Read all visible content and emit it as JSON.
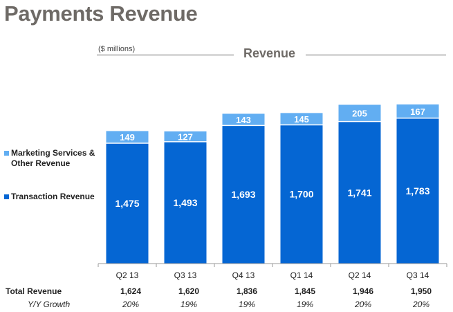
{
  "page": {
    "title": "Payments Revenue"
  },
  "chart_data": {
    "type": "bar",
    "stacked": true,
    "title": "Revenue",
    "units_note": "($ millions)",
    "categories": [
      "Q2 13",
      "Q3 13",
      "Q4 13",
      "Q1 14",
      "Q2 14",
      "Q3 14"
    ],
    "series": [
      {
        "name": "Transaction Revenue",
        "color": "#0566d3",
        "values": [
          1475,
          1493,
          1693,
          1700,
          1741,
          1783
        ],
        "labels": [
          "1,475",
          "1,493",
          "1,693",
          "1,700",
          "1,741",
          "1,783"
        ]
      },
      {
        "name": "Marketing Services & Other Revenue",
        "color": "#62aef2",
        "values": [
          149,
          127,
          143,
          145,
          205,
          167
        ],
        "labels": [
          "149",
          "127",
          "143",
          "145",
          "205",
          "167"
        ]
      }
    ],
    "ylim": [
      0,
      1950
    ],
    "grid": false,
    "legend_position": "left"
  },
  "legend": {
    "items": [
      {
        "label": "Marketing Services & Other Revenue",
        "color": "#62aef2"
      },
      {
        "label": "Transaction Revenue",
        "color": "#0566d3"
      }
    ]
  },
  "table": {
    "total_label": "Total Revenue",
    "totals": [
      "1,624",
      "1,620",
      "1,836",
      "1,845",
      "1,946",
      "1,950"
    ],
    "growth_label": "Y/Y Growth",
    "growth": [
      "20%",
      "19%",
      "19%",
      "19%",
      "20%",
      "20%"
    ]
  }
}
